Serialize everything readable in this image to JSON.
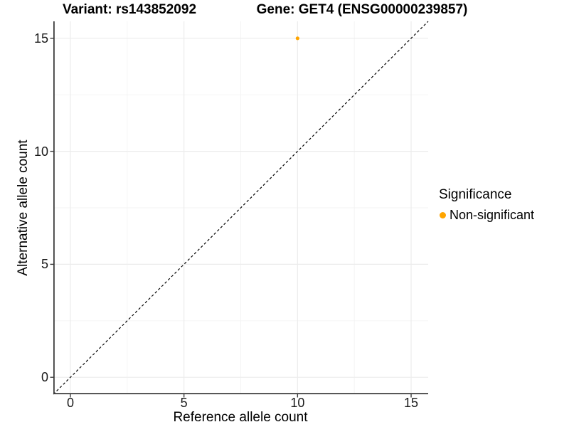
{
  "chart_data": {
    "type": "scatter",
    "title_left": "Variant: rs143852092",
    "title_right": "Gene: GET4 (ENSG00000239857)",
    "xlabel": "Reference allele count",
    "ylabel": "Alternative allele count",
    "xlim": [
      -0.75,
      15.75
    ],
    "ylim": [
      -0.75,
      15.75
    ],
    "xticks": [
      0,
      5,
      10,
      15
    ],
    "yticks": [
      0,
      5,
      10,
      15
    ],
    "xticks_minor": [
      2.5,
      7.5,
      12.5
    ],
    "yticks_minor": [
      2.5,
      7.5,
      12.5
    ],
    "grid": true,
    "series": [
      {
        "name": "Non-significant",
        "color": "#FFA500",
        "points": [
          {
            "x": 10,
            "y": 15
          }
        ]
      }
    ],
    "reference_line": {
      "type": "identity",
      "style": "dashed",
      "color": "#000000"
    },
    "legend": {
      "title": "Significance",
      "position": "right",
      "items": [
        {
          "label": "Non-significant",
          "color": "#FFA500"
        }
      ]
    },
    "colors": {
      "grid_major": "#ECECEC",
      "grid_minor": "#F3F3F3",
      "axis_line": "#3C3C3C",
      "tick_mark": "#3C3C3C"
    }
  }
}
